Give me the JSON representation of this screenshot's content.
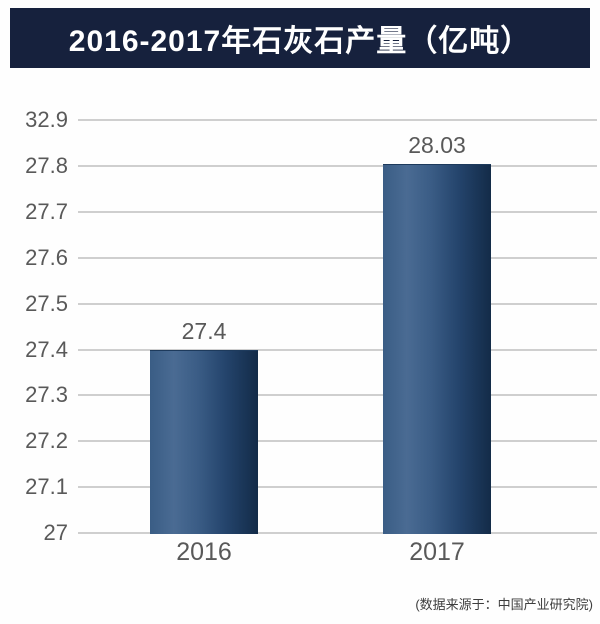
{
  "title": "2016-2017年石灰石产量（亿吨）",
  "source_note": "(数据来源于：中国产业研究院)",
  "colors": {
    "banner_bg": "#16213d",
    "title_text": "#ffffff",
    "axis_text": "#595959",
    "gridline": "#cfcfcf",
    "bar_gradient_light": "#4a6b93",
    "bar_gradient_dark": "#132b48",
    "source_text": "#3d3d3d"
  },
  "chart_data": {
    "type": "bar",
    "title": "2016-2017年石灰石产量（亿吨）",
    "categories": [
      "2016",
      "2017"
    ],
    "values": [
      27.4,
      28.03
    ],
    "value_labels": [
      "27.4",
      "28.03"
    ],
    "ytick_labels": [
      "32.9",
      "27.8",
      "27.7",
      "27.6",
      "27.5",
      "27.4",
      "27.3",
      "27.2",
      "27.1",
      "27"
    ],
    "ylim": [
      27,
      32.9
    ],
    "xlabel": "",
    "ylabel": "",
    "grid": true,
    "legend": false,
    "source": "(数据来源于：中国产业研究院)"
  }
}
